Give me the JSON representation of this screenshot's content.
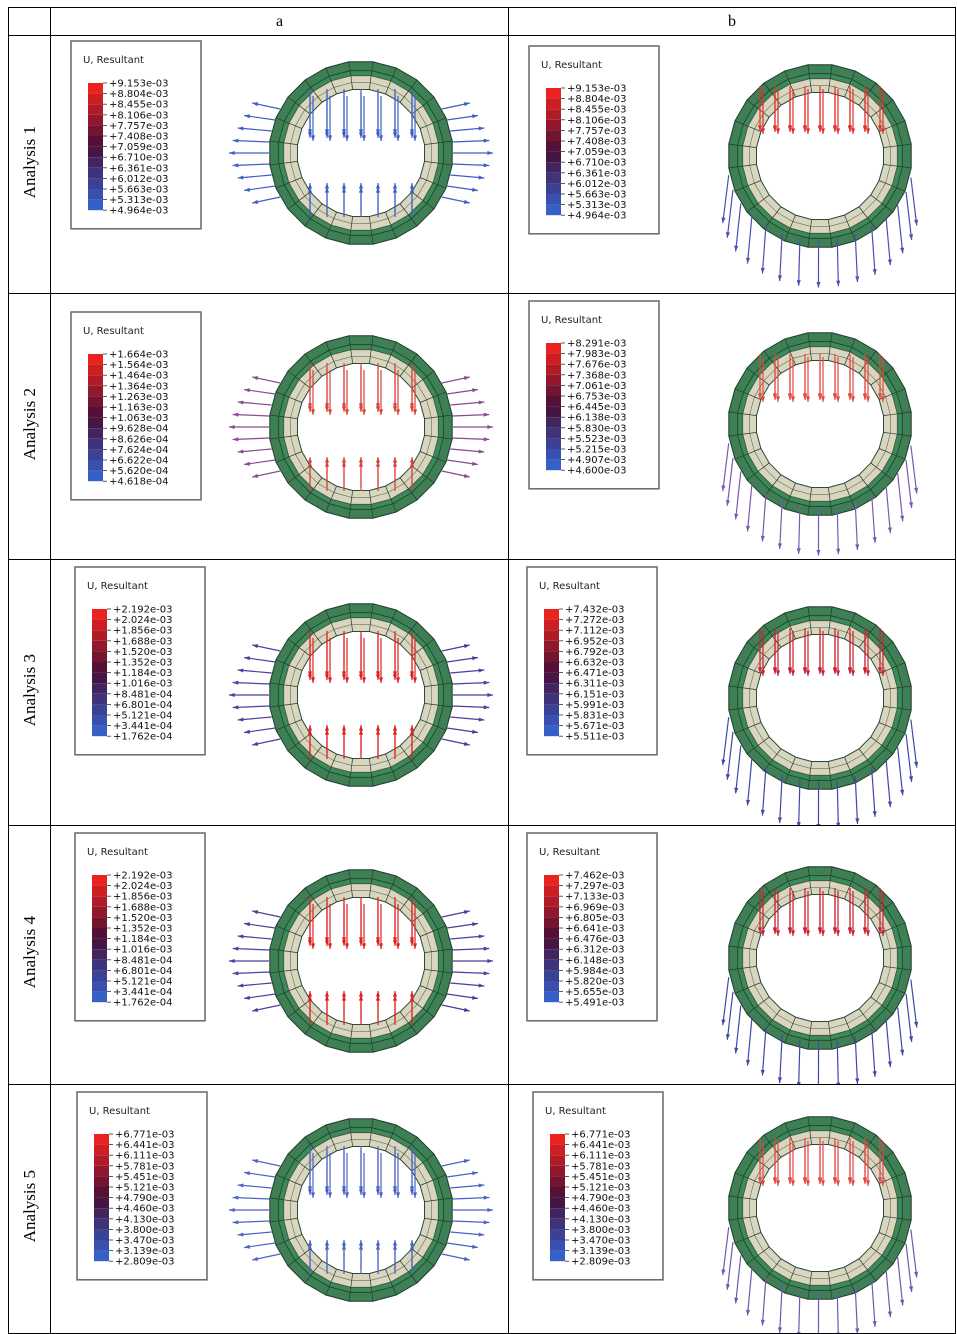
{
  "table": {
    "columns": [
      "a",
      "b"
    ],
    "rows": [
      {
        "label": "Analysis 1",
        "cells": [
          {
            "legend_title": "U, Resultant",
            "values": [
              "+9.153e-03",
              "+8.804e-03",
              "+8.455e-03",
              "+8.106e-03",
              "+7.757e-03",
              "+7.408e-03",
              "+7.059e-03",
              "+6.710e-03",
              "+6.361e-03",
              "+6.012e-03",
              "+5.663e-03",
              "+5.313e-03",
              "+4.964e-03"
            ]
          },
          {
            "legend_title": "U, Resultant",
            "values": [
              "+9.153e-03",
              "+8.804e-03",
              "+8.455e-03",
              "+8.106e-03",
              "+7.757e-03",
              "+7.408e-03",
              "+7.059e-03",
              "+6.710e-03",
              "+6.361e-03",
              "+6.012e-03",
              "+5.663e-03",
              "+5.313e-03",
              "+4.964e-03"
            ]
          }
        ]
      },
      {
        "label": "Analysis 2",
        "cells": [
          {
            "legend_title": "U, Resultant",
            "values": [
              "+1.664e-03",
              "+1.564e-03",
              "+1.464e-03",
              "+1.364e-03",
              "+1.263e-03",
              "+1.163e-03",
              "+1.063e-03",
              "+9.628e-04",
              "+8.626e-04",
              "+7.624e-04",
              "+6.622e-04",
              "+5.620e-04",
              "+4.618e-04"
            ]
          },
          {
            "legend_title": "U, Resultant",
            "values": [
              "+8.291e-03",
              "+7.983e-03",
              "+7.676e-03",
              "+7.368e-03",
              "+7.061e-03",
              "+6.753e-03",
              "+6.445e-03",
              "+6.138e-03",
              "+5.830e-03",
              "+5.523e-03",
              "+5.215e-03",
              "+4.907e-03",
              "+4.600e-03"
            ]
          }
        ]
      },
      {
        "label": "Analysis 3",
        "cells": [
          {
            "legend_title": "U, Resultant",
            "values": [
              "+2.192e-03",
              "+2.024e-03",
              "+1.856e-03",
              "+1.688e-03",
              "+1.520e-03",
              "+1.352e-03",
              "+1.184e-03",
              "+1.016e-03",
              "+8.481e-04",
              "+6.801e-04",
              "+5.121e-04",
              "+3.441e-04",
              "+1.762e-04"
            ]
          },
          {
            "legend_title": "U, Resultant",
            "values": [
              "+7.432e-03",
              "+7.272e-03",
              "+7.112e-03",
              "+6.952e-03",
              "+6.792e-03",
              "+6.632e-03",
              "+6.471e-03",
              "+6.311e-03",
              "+6.151e-03",
              "+5.991e-03",
              "+5.831e-03",
              "+5.671e-03",
              "+5.511e-03"
            ]
          }
        ]
      },
      {
        "label": "Analysis 4",
        "cells": [
          {
            "legend_title": "U, Resultant",
            "values": [
              "+2.192e-03",
              "+2.024e-03",
              "+1.856e-03",
              "+1.688e-03",
              "+1.520e-03",
              "+1.352e-03",
              "+1.184e-03",
              "+1.016e-03",
              "+8.481e-04",
              "+6.801e-04",
              "+5.121e-04",
              "+3.441e-04",
              "+1.762e-04"
            ]
          },
          {
            "legend_title": "U, Resultant",
            "values": [
              "+7.462e-03",
              "+7.297e-03",
              "+7.133e-03",
              "+6.969e-03",
              "+6.805e-03",
              "+6.641e-03",
              "+6.476e-03",
              "+6.312e-03",
              "+6.148e-03",
              "+5.984e-03",
              "+5.820e-03",
              "+5.655e-03",
              "+5.491e-03"
            ]
          }
        ]
      },
      {
        "label": "Analysis 5",
        "cells": [
          {
            "legend_title": "U, Resultant",
            "values": [
              "+6.771e-03",
              "+6.441e-03",
              "+6.111e-03",
              "+5.781e-03",
              "+5.451e-03",
              "+5.121e-03",
              "+4.790e-03",
              "+4.460e-03",
              "+4.130e-03",
              "+3.800e-03",
              "+3.470e-03",
              "+3.139e-03",
              "+2.809e-03"
            ]
          },
          {
            "legend_title": "U, Resultant",
            "values": [
              "+6.771e-03",
              "+6.441e-03",
              "+6.111e-03",
              "+5.781e-03",
              "+5.451e-03",
              "+5.121e-03",
              "+4.790e-03",
              "+4.460e-03",
              "+4.130e-03",
              "+3.800e-03",
              "+3.470e-03",
              "+3.139e-03",
              "+2.809e-03"
            ]
          }
        ]
      }
    ]
  }
}
